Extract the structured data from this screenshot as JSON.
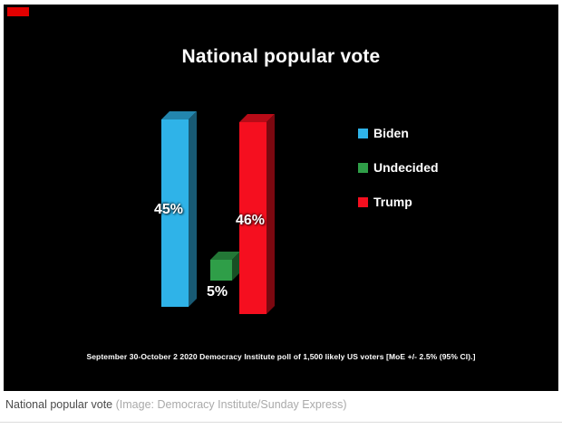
{
  "chart_data": {
    "type": "bar",
    "title": "National popular vote",
    "categories": [
      "Biden",
      "Undecided",
      "Trump"
    ],
    "values": [
      45,
      5,
      46
    ],
    "value_labels": [
      "45%",
      "5%",
      "46%"
    ],
    "colors": {
      "Biden": "#2fb3e8",
      "Undecided": "#2f9e48",
      "Trump": "#f50f1f"
    },
    "legend": [
      "Biden",
      "Undecided",
      "Trump"
    ],
    "legend_position": "right",
    "ylim": [
      0,
      50
    ],
    "grid": false,
    "background": "#000000",
    "footnote": "September 30-October 2 2020 Democracy Institute poll of 1,500 likely US voters [MoE +/- 2.5% (95% CI).]"
  },
  "caption": {
    "title": "National popular vote",
    "credit": "(Image: Democracy Institute/Sunday Express)"
  }
}
